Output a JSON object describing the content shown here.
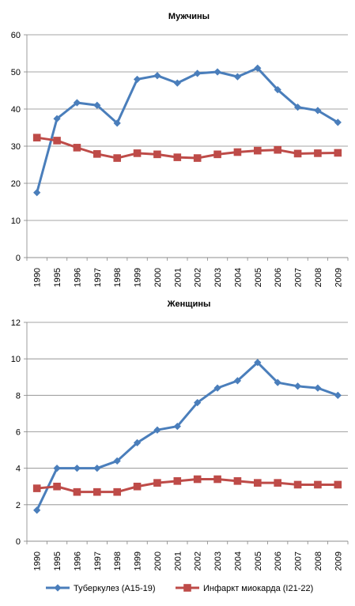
{
  "chart_data": [
    {
      "type": "line",
      "title": "Мужчины",
      "xlabel": "",
      "ylabel": "",
      "categories": [
        "1990",
        "1995",
        "1996",
        "1997",
        "1998",
        "1999",
        "2000",
        "2001",
        "2002",
        "2003",
        "2004",
        "2005",
        "2006",
        "2007",
        "2008",
        "2009"
      ],
      "ylim": [
        0,
        60
      ],
      "yticks": [
        0,
        10,
        20,
        30,
        40,
        50,
        60
      ],
      "grid": true,
      "series": [
        {
          "name": "Туберкулез (А15-19)",
          "color": "#4a7ebb",
          "marker": "diamond",
          "values": [
            17.5,
            37.4,
            41.7,
            41.0,
            36.2,
            48.0,
            49.0,
            47.0,
            49.6,
            50.0,
            48.7,
            51.0,
            45.2,
            40.5,
            39.6,
            36.4
          ]
        },
        {
          "name": "Инфаркт миокарда (I21-22)",
          "color": "#be4b48",
          "marker": "square",
          "values": [
            32.3,
            31.5,
            29.6,
            27.9,
            26.8,
            28.1,
            27.8,
            27.0,
            26.8,
            27.8,
            28.4,
            28.8,
            29.0,
            28.0,
            28.1,
            28.2
          ]
        }
      ]
    },
    {
      "type": "line",
      "title": "Женщины",
      "xlabel": "",
      "ylabel": "",
      "categories": [
        "1990",
        "1995",
        "1996",
        "1997",
        "1998",
        "1999",
        "2000",
        "2001",
        "2002",
        "2003",
        "2004",
        "2005",
        "2006",
        "2007",
        "2008",
        "2009"
      ],
      "ylim": [
        0,
        12
      ],
      "yticks": [
        0,
        2,
        4,
        6,
        8,
        10,
        12
      ],
      "grid": true,
      "series": [
        {
          "name": "Туберкулез (А15-19)",
          "color": "#4a7ebb",
          "marker": "diamond",
          "values": [
            1.7,
            4.0,
            4.0,
            4.0,
            4.4,
            5.4,
            6.1,
            6.3,
            7.6,
            8.4,
            8.8,
            9.8,
            8.7,
            8.5,
            8.4,
            8.0
          ]
        },
        {
          "name": "Инфаркт миокарда (I21-22)",
          "color": "#be4b48",
          "marker": "square",
          "values": [
            2.9,
            3.0,
            2.7,
            2.7,
            2.7,
            3.0,
            3.2,
            3.3,
            3.4,
            3.4,
            3.3,
            3.2,
            3.2,
            3.1,
            3.1,
            3.1
          ]
        }
      ]
    }
  ],
  "legend": {
    "position": "bottom",
    "items": [
      {
        "label": "Туберкулез (А15-19)",
        "color": "#4a7ebb",
        "marker": "diamond"
      },
      {
        "label": "Инфаркт миокарда (I21-22)",
        "color": "#be4b48",
        "marker": "square"
      }
    ]
  }
}
